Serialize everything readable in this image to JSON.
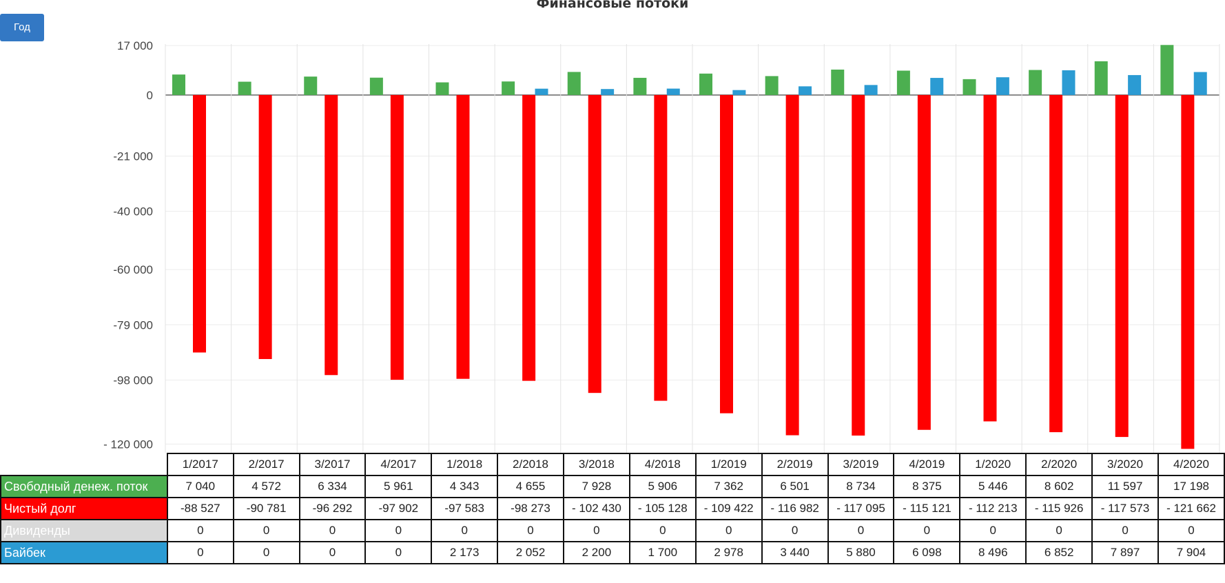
{
  "chart_data": {
    "type": "bar",
    "title": "Финансовые потоки",
    "categories": [
      "1/2017",
      "2/2017",
      "3/2017",
      "4/2017",
      "1/2018",
      "2/2018",
      "3/2018",
      "4/2018",
      "1/2019",
      "2/2019",
      "3/2019",
      "4/2019",
      "1/2020",
      "2/2020",
      "3/2020",
      "4/2020"
    ],
    "y_ticks": [
      "17 000",
      "0",
      "-21 000",
      "-40 000",
      "-60 000",
      "-79 000",
      "-98 000",
      "- 120 000"
    ],
    "ylim": [
      -123000,
      17500
    ],
    "grid": true,
    "series": [
      {
        "name": "Свободный денеж. поток",
        "color": "#4caf50",
        "values": [
          7040,
          4572,
          6334,
          5961,
          4343,
          4655,
          7928,
          5906,
          7362,
          6501,
          8734,
          8375,
          5446,
          8602,
          11597,
          17198
        ],
        "labels": [
          "7 040",
          "4 572",
          "6 334",
          "5 961",
          "4 343",
          "4 655",
          "7 928",
          "5 906",
          "7 362",
          "6 501",
          "8 734",
          "8 375",
          "5 446",
          "8 602",
          "11 597",
          "17 198"
        ]
      },
      {
        "name": "Чистый долг",
        "color": "#ff0000",
        "values": [
          -88527,
          -90781,
          -96292,
          -97902,
          -97583,
          -98273,
          -102430,
          -105128,
          -109422,
          -116982,
          -117095,
          -115121,
          -112213,
          -115926,
          -117573,
          -121662
        ],
        "labels": [
          "-88 527",
          "-90 781",
          "-96 292",
          "-97 902",
          "-97 583",
          "-98 273",
          "- 102 430",
          "- 105 128",
          "- 109 422",
          "- 116 982",
          "- 117 095",
          "- 115 121",
          "- 112 213",
          "- 115 926",
          "- 117 573",
          "- 121 662"
        ]
      },
      {
        "name": "Дивиденды",
        "color": "#d9d9d9",
        "values": [
          0,
          0,
          0,
          0,
          0,
          0,
          0,
          0,
          0,
          0,
          0,
          0,
          0,
          0,
          0,
          0
        ],
        "labels": [
          "0",
          "0",
          "0",
          "0",
          "0",
          "0",
          "0",
          "0",
          "0",
          "0",
          "0",
          "0",
          "0",
          "0",
          "0",
          "0"
        ]
      },
      {
        "name": "Байбек",
        "color": "#2b9bd3",
        "values": [
          0,
          0,
          0,
          0,
          2173,
          2052,
          2200,
          1700,
          2978,
          3440,
          5880,
          6098,
          8496,
          6852,
          7897,
          7904
        ],
        "labels": [
          "0",
          "0",
          "0",
          "0",
          "2 173",
          "2 052",
          "2 200",
          "1 700",
          "2 978",
          "3 440",
          "5 880",
          "6 098",
          "8 496",
          "6 852",
          "7 897",
          "7 904"
        ]
      }
    ]
  },
  "controls": {
    "period_button": "Год"
  }
}
